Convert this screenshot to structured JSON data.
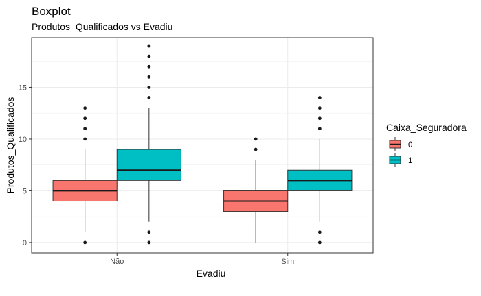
{
  "chart_data": {
    "type": "boxplot",
    "title": "Boxplot",
    "subtitle": "Produtos_Qualificados vs Evadiu",
    "xlabel": "Evadiu",
    "ylabel": "Produtos_Qualificados",
    "categories": [
      "Não",
      "Sim"
    ],
    "ylim": [
      -1,
      19.8
    ],
    "yticks": [
      0,
      5,
      10,
      15
    ],
    "grid": true,
    "legend": {
      "title": "Caixa_Seguradora",
      "placement": "right",
      "entries": [
        {
          "label": "0",
          "color": "#F8766D"
        },
        {
          "label": "1",
          "color": "#00BFC4"
        }
      ]
    },
    "series": [
      {
        "group": "0",
        "color": "#F8766D",
        "boxes": [
          {
            "category": "Não",
            "min": 1,
            "q1": 4,
            "median": 5,
            "q3": 6,
            "max": 9,
            "outliers": [
              0,
              10,
              11,
              12,
              13
            ]
          },
          {
            "category": "Sim",
            "min": 0,
            "q1": 3,
            "median": 4,
            "q3": 5,
            "max": 8,
            "outliers": [
              9,
              10
            ]
          }
        ]
      },
      {
        "group": "1",
        "color": "#00BFC4",
        "boxes": [
          {
            "category": "Não",
            "min": 2,
            "q1": 6,
            "median": 7,
            "q3": 9,
            "max": 13,
            "outliers": [
              0,
              1,
              14,
              15,
              16,
              17,
              18,
              19
            ]
          },
          {
            "category": "Sim",
            "min": 2,
            "q1": 5,
            "median": 6,
            "q3": 7,
            "max": 10,
            "outliers": [
              0,
              1,
              11,
              12,
              13,
              14
            ]
          }
        ]
      }
    ]
  }
}
